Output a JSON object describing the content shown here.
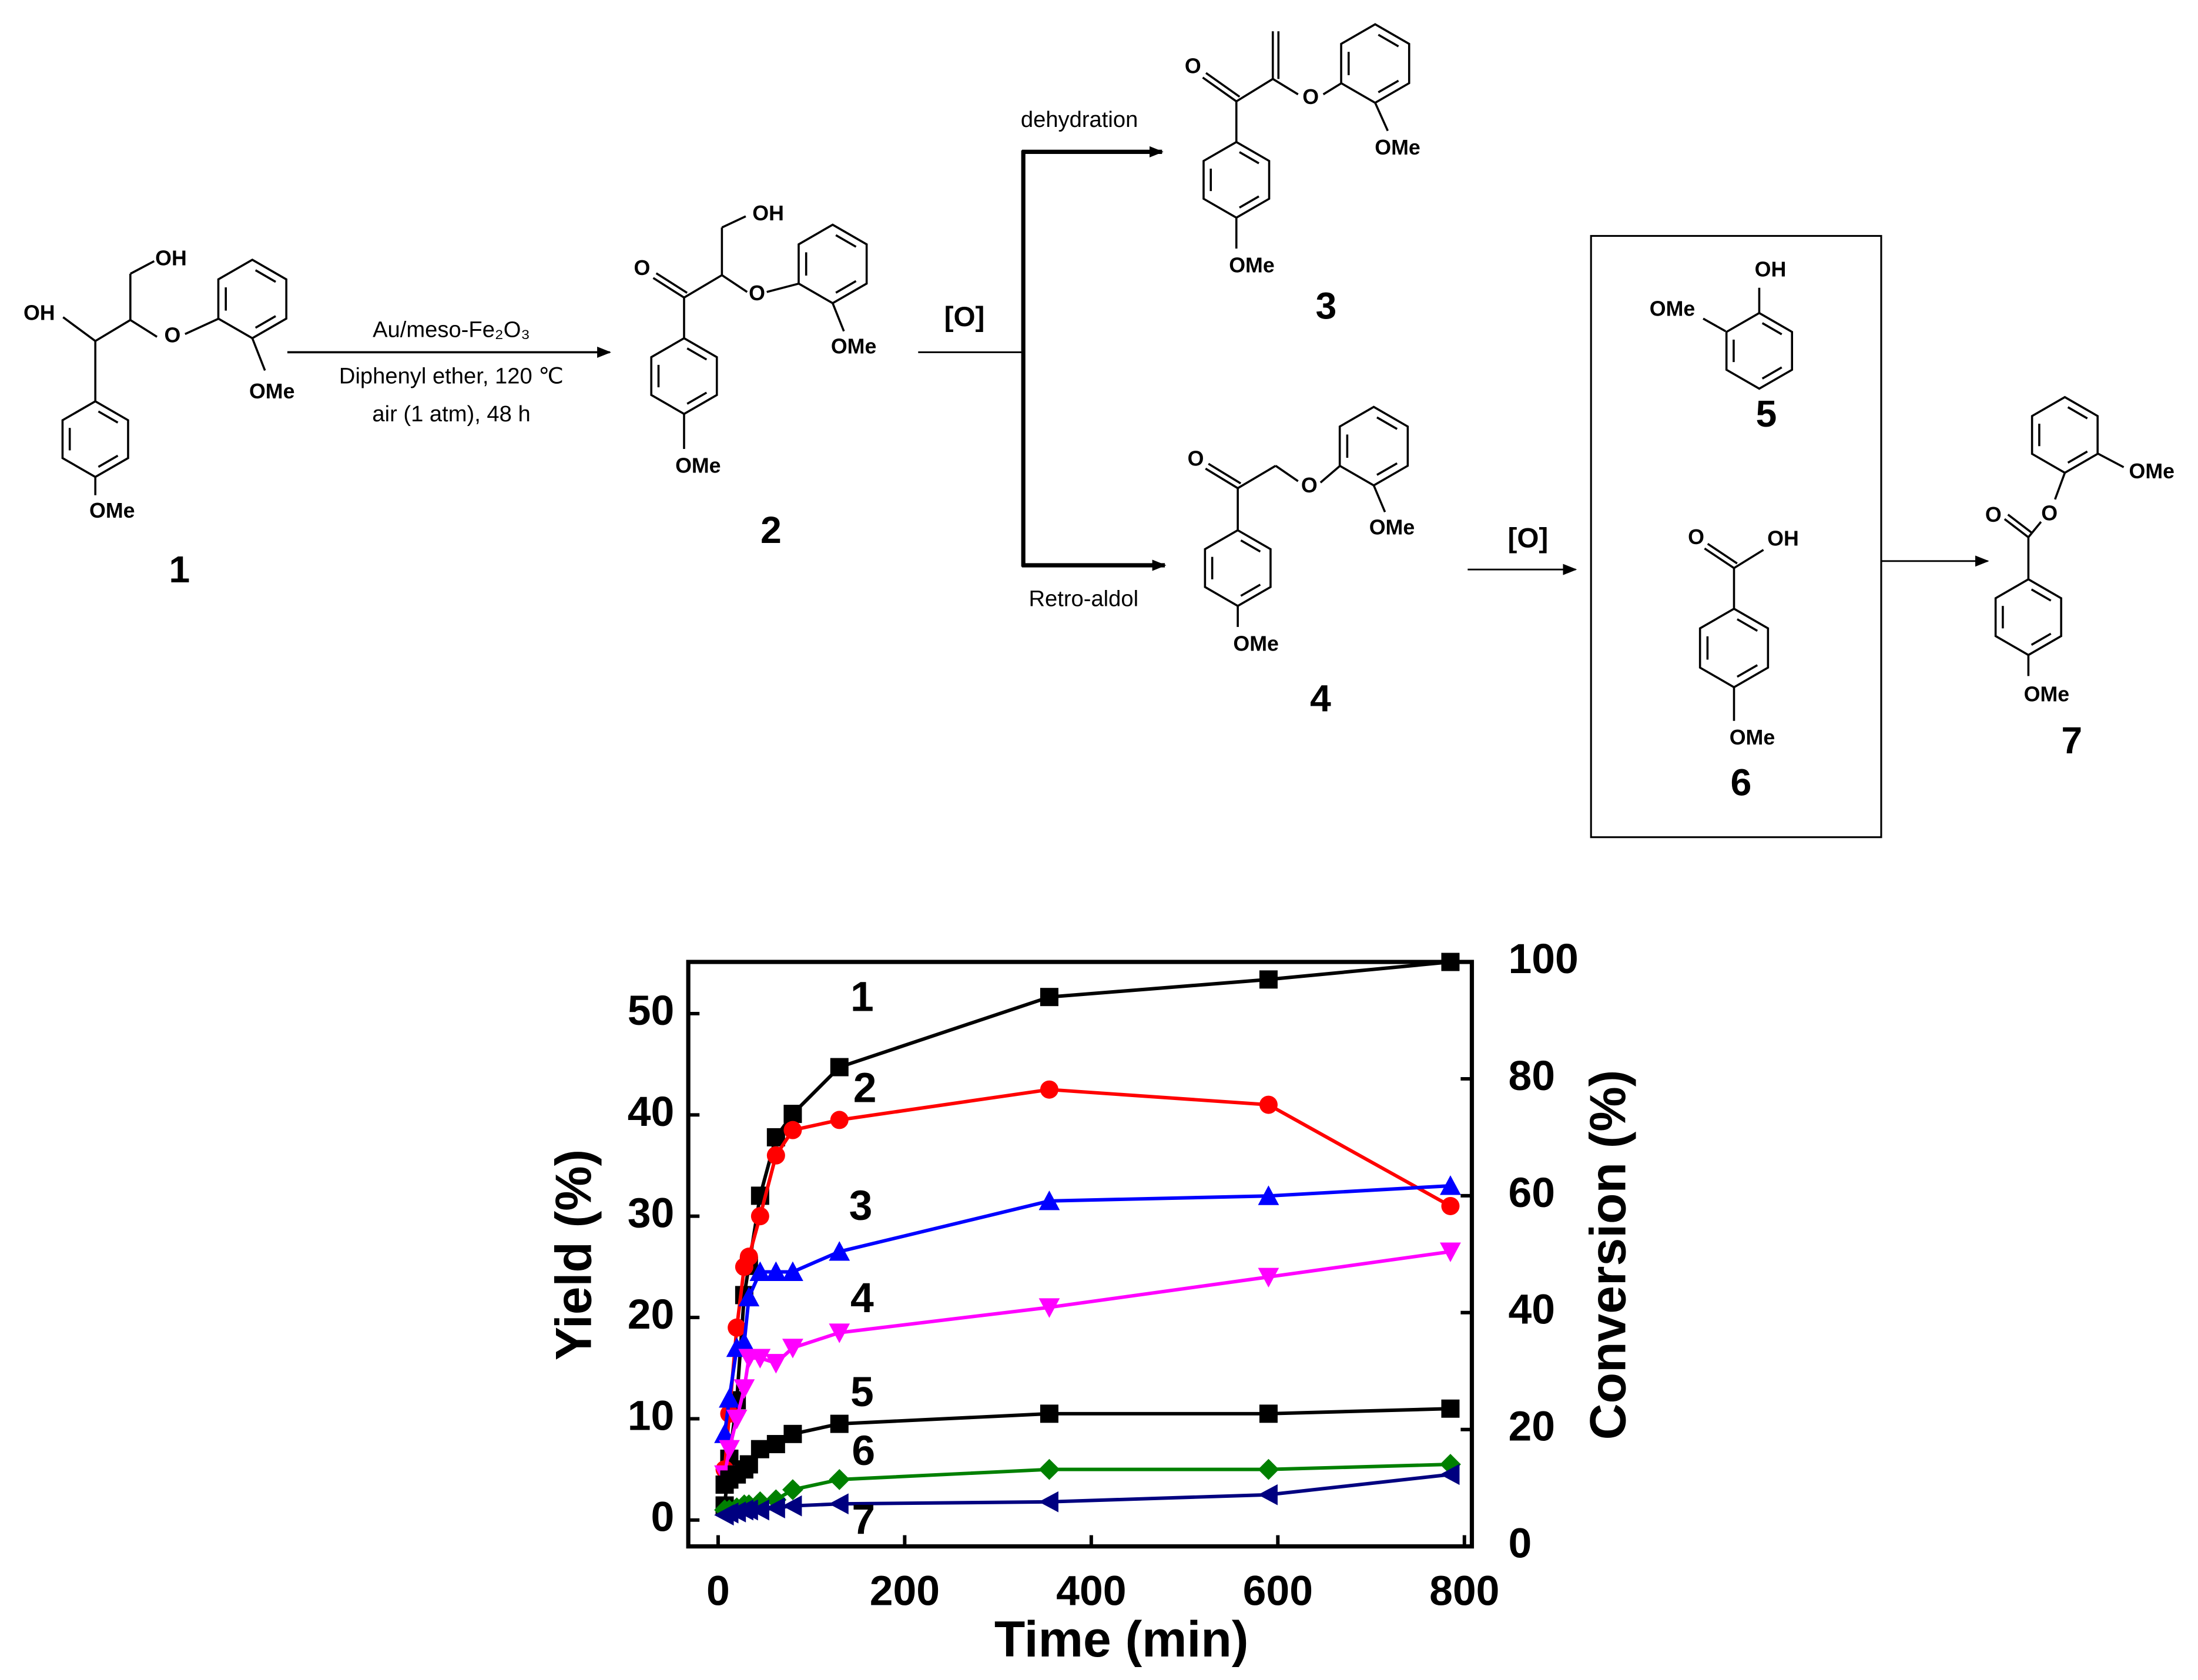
{
  "scheme": {
    "compounds": [
      {
        "number": "1",
        "atoms": [
          "OH",
          "OH",
          "O",
          "OMe",
          "OMe"
        ]
      },
      {
        "number": "2",
        "atoms": [
          "OH",
          "O",
          "O",
          "OMe",
          "OMe"
        ]
      },
      {
        "number": "3",
        "atoms": [
          "O",
          "O",
          "OMe",
          "OMe"
        ]
      },
      {
        "number": "4",
        "atoms": [
          "O",
          "O",
          "OMe",
          "OMe"
        ]
      },
      {
        "number": "5",
        "atoms": [
          "OH",
          "OMe"
        ]
      },
      {
        "number": "6",
        "atoms": [
          "O",
          "OH",
          "OMe"
        ]
      },
      {
        "number": "7",
        "atoms": [
          "O",
          "O",
          "OMe",
          "OMe"
        ]
      }
    ],
    "reagents": [
      "Au/meso-Fe₂O₃",
      "Diphenyl ether, 120 ℃",
      "air (1 atm), 48 h"
    ],
    "oxidant": [
      "[O]",
      "[O]"
    ],
    "paths": [
      "dehydration",
      "Retro-aldol"
    ]
  },
  "chart_data": {
    "type": "scatter-line",
    "xlabel": "Time (min)",
    "ylabel": "Yield (%)",
    "y2label": "Conversion (%)",
    "x": [
      7,
      12,
      20,
      28,
      33,
      45,
      62,
      80,
      130,
      355,
      590,
      785
    ],
    "xlim": [
      -32,
      808
    ],
    "xticks": [
      0,
      200,
      400,
      600,
      800
    ],
    "ylim": [
      -2.6,
      55.1
    ],
    "yticks": [
      0,
      10,
      20,
      30,
      40,
      50
    ],
    "y2lim": [
      0,
      100
    ],
    "y2ticks": [
      0,
      20,
      40,
      60,
      80,
      100
    ],
    "series": [
      {
        "name": "1",
        "color": "#000000",
        "marker": "square",
        "axis": "y2",
        "values": [
          7,
          15,
          25,
          43,
          48,
          60,
          70,
          74,
          82,
          94,
          97,
          100
        ]
      },
      {
        "name": "2",
        "color": "#ff0000",
        "marker": "circle",
        "values": [
          5,
          10.5,
          19,
          25,
          26,
          30,
          36,
          38.5,
          39.5,
          42.5,
          41,
          31
        ]
      },
      {
        "name": "3",
        "color": "#0000ff",
        "marker": "triangle-up",
        "values": [
          8.5,
          12,
          17,
          17.5,
          22,
          24.5,
          24.5,
          24.5,
          26.5,
          31.5,
          32,
          33
        ]
      },
      {
        "name": "4",
        "color": "#ff00ff",
        "marker": "triangle-down",
        "values": [
          4.5,
          7,
          10,
          13,
          16,
          16,
          15.5,
          17,
          18.5,
          21,
          24,
          26.5
        ]
      },
      {
        "name": "5",
        "color": "#000000",
        "marker": "square",
        "values": [
          3.5,
          4,
          4.5,
          5,
          5.5,
          7,
          7.5,
          8.5,
          9.5,
          10.5,
          10.5,
          11
        ]
      },
      {
        "name": "6",
        "color": "#008000",
        "marker": "diamond",
        "values": [
          1,
          1,
          1.2,
          1.5,
          1.5,
          1.8,
          2,
          3,
          4,
          5,
          5,
          5.5
        ]
      },
      {
        "name": "7",
        "color": "#000080",
        "marker": "triangle-left",
        "values": [
          0.5,
          0.7,
          0.8,
          1,
          1,
          1,
          1.2,
          1.4,
          1.6,
          1.8,
          2.5,
          4.5
        ]
      }
    ]
  }
}
